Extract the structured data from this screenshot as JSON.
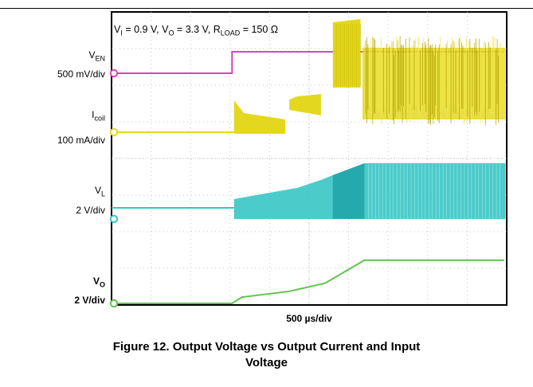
{
  "chart_data": {
    "type": "line",
    "title": "",
    "annotation": {
      "vi": "V",
      "vi_sub": "I",
      "vi_val": " = 0.9 V, ",
      "vo": "V",
      "vo_sub": "O",
      "vo_val": " = 3.3 V, ",
      "r": "R",
      "r_sub": "LOAD",
      "r_val": " = 150 Ω"
    },
    "x_scale_label": "500 µs/div",
    "xlim": [
      0,
      10
    ],
    "divisions": {
      "x": 10,
      "y": 8
    },
    "channels": [
      {
        "name": "V",
        "sub": "EN",
        "scale": "500 mV/div",
        "color": "#d348b8",
        "note": "steps high at x=3.0 div"
      },
      {
        "name": "I",
        "sub": "coil",
        "scale": "100 mA/div",
        "color": "#e4d81e"
      },
      {
        "name": "V",
        "sub": "L",
        "scale": "2 V/div",
        "color": "#38c5c5"
      },
      {
        "name": "V",
        "sub": "O",
        "scale": "2 V/div",
        "color": "#5dc44b",
        "bold": true
      }
    ],
    "vo_trace": {
      "x": [
        0,
        3.05,
        3.3,
        4.5,
        5.4,
        6.4,
        10
      ],
      "y_div": [
        0,
        0,
        0.17,
        0.33,
        0.55,
        1.18,
        1.18
      ]
    },
    "caption_line1": "Figure 12. Output Voltage vs Output Current and Input",
    "caption_line2": "Voltage",
    "colors": {
      "grid": "#b9b9b9",
      "border": "#000000"
    }
  }
}
